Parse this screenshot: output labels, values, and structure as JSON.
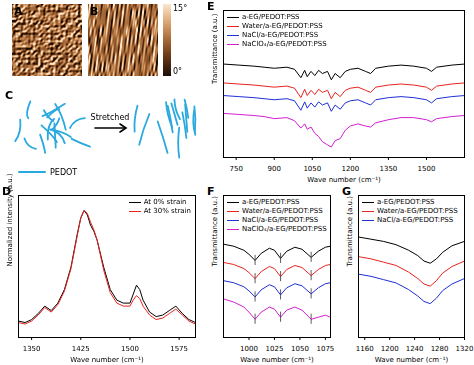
{
  "chart_data": [
    {
      "type": "line",
      "title": "D",
      "x_label": "Wave number (cm⁻¹)",
      "y_label": "Normalized intensity (a.u.)",
      "x": [
        1330,
        1340,
        1350,
        1360,
        1370,
        1380,
        1390,
        1400,
        1410,
        1420,
        1425,
        1430,
        1435,
        1440,
        1445,
        1450,
        1460,
        1470,
        1480,
        1490,
        1500,
        1505,
        1510,
        1515,
        1520,
        1530,
        1540,
        1550,
        1560,
        1570,
        1580,
        1590,
        1600
      ],
      "series": [
        {
          "name": "At 0% strain",
          "color": "#000000",
          "values": [
            0.26,
            0.25,
            0.27,
            0.31,
            0.36,
            0.33,
            0.38,
            0.47,
            0.62,
            0.85,
            0.95,
            1.0,
            0.97,
            0.9,
            0.86,
            0.8,
            0.62,
            0.47,
            0.4,
            0.38,
            0.38,
            0.44,
            0.5,
            0.47,
            0.4,
            0.32,
            0.29,
            0.3,
            0.33,
            0.36,
            0.31,
            0.27,
            0.25
          ]
        },
        {
          "name": "At 30% strain",
          "color": "#e8231f",
          "values": [
            0.25,
            0.24,
            0.26,
            0.3,
            0.35,
            0.32,
            0.37,
            0.46,
            0.61,
            0.84,
            0.95,
            1.0,
            0.98,
            0.92,
            0.87,
            0.8,
            0.6,
            0.45,
            0.38,
            0.36,
            0.36,
            0.4,
            0.43,
            0.41,
            0.36,
            0.3,
            0.27,
            0.28,
            0.31,
            0.34,
            0.3,
            0.26,
            0.24
          ]
        }
      ],
      "xlim": [
        1330,
        1600
      ],
      "xticks": [
        1350,
        1425,
        1500,
        1575
      ],
      "ylim": [
        0.15,
        1.1
      ],
      "tick_labels": "x",
      "legend": "top right"
    },
    {
      "type": "line",
      "title": "E",
      "x_label": "Wave number (cm⁻¹)",
      "y_label": "Transmittance (a.u.)",
      "x": [
        700,
        760,
        820,
        860,
        900,
        950,
        980,
        1005,
        1020,
        1030,
        1045,
        1060,
        1075,
        1090,
        1110,
        1125,
        1140,
        1160,
        1180,
        1200,
        1230,
        1260,
        1280,
        1300,
        1350,
        1400,
        1450,
        1500,
        1520,
        1540,
        1600,
        1650
      ],
      "series": [
        {
          "name": "a-EG/PEDOT:PSS",
          "color": "#000000",
          "values": [
            8.9,
            8.8,
            8.7,
            8.6,
            8.5,
            8.6,
            8.4,
            7.6,
            8.3,
            7.7,
            8.2,
            7.8,
            8.3,
            8.0,
            8.2,
            7.4,
            8.0,
            7.6,
            8.2,
            8.4,
            8.5,
            8.2,
            8.0,
            8.5,
            8.7,
            8.8,
            8.7,
            8.5,
            8.2,
            8.6,
            8.8,
            8.9
          ]
        },
        {
          "name": "Water/a-EG/PEDOT:PSS",
          "color": "#e8231f",
          "values": [
            7.1,
            7.0,
            6.9,
            6.8,
            6.7,
            6.8,
            6.6,
            5.7,
            6.5,
            5.9,
            6.4,
            6.0,
            6.5,
            6.2,
            6.4,
            5.6,
            6.2,
            5.8,
            6.4,
            6.6,
            6.7,
            6.4,
            6.2,
            6.7,
            6.9,
            7.0,
            6.9,
            6.7,
            6.4,
            6.8,
            7.0,
            7.1
          ]
        },
        {
          "name": "NaCl/a-EG/PEDOT:PSS",
          "color": "#1f2fd6",
          "values": [
            5.9,
            5.8,
            5.7,
            5.6,
            5.5,
            5.6,
            5.4,
            4.5,
            5.3,
            4.7,
            5.2,
            4.8,
            5.3,
            5.0,
            5.2,
            4.4,
            5.0,
            4.6,
            5.2,
            5.4,
            5.5,
            5.2,
            5.0,
            5.5,
            5.7,
            5.8,
            5.7,
            5.5,
            5.2,
            5.6,
            5.8,
            5.9
          ]
        },
        {
          "name": "NaClO₄/a-EG/PEDOT:PSS",
          "color": "#d21fd2",
          "values": [
            4.2,
            4.1,
            4.0,
            3.9,
            3.7,
            3.8,
            3.5,
            2.8,
            3.2,
            2.7,
            2.9,
            2.3,
            2.0,
            1.5,
            1.2,
            1.0,
            1.6,
            1.8,
            2.6,
            3.0,
            3.2,
            3.0,
            2.9,
            3.3,
            3.6,
            3.8,
            3.8,
            3.6,
            3.4,
            3.7,
            3.9,
            4.0
          ]
        }
      ],
      "xlim": [
        700,
        1650
      ],
      "xticks": [
        750,
        900,
        1050,
        1200,
        1350,
        1500
      ],
      "ylim": [
        0,
        14
      ],
      "tick_labels": "x",
      "legend": "top left"
    },
    {
      "type": "line",
      "title": "F",
      "x_label": "Wave number (cm⁻¹)",
      "y_label": "Transmittance (a.u.)",
      "x": [
        975,
        985,
        995,
        1000,
        1006,
        1012,
        1020,
        1025,
        1031,
        1037,
        1045,
        1052,
        1061,
        1068,
        1075,
        1080
      ],
      "series": [
        {
          "name": "a-EG/PEDOT:PSS",
          "color": "#000000",
          "values": [
            9.2,
            9.0,
            8.6,
            8.2,
            7.6,
            8.3,
            8.8,
            8.6,
            7.8,
            8.5,
            8.9,
            8.7,
            7.9,
            8.5,
            8.9,
            9.0
          ]
        },
        {
          "name": "Water/a-EG/PEDOT:PSS",
          "color": "#e8231f",
          "values": [
            7.4,
            7.2,
            6.8,
            6.4,
            5.8,
            6.5,
            7.0,
            6.8,
            6.0,
            6.7,
            7.1,
            6.9,
            6.1,
            6.7,
            7.1,
            7.2
          ]
        },
        {
          "name": "NaCl/a-EG/PEDOT:PSS",
          "color": "#1f2fd6",
          "values": [
            5.6,
            5.4,
            5.0,
            4.6,
            4.0,
            4.7,
            5.2,
            5.0,
            4.2,
            4.9,
            5.3,
            5.1,
            4.3,
            4.9,
            5.3,
            5.4
          ]
        },
        {
          "name": "NaClO₄/a-EG/PEDOT:PSS",
          "color": "#d21fd2",
          "values": [
            3.8,
            3.5,
            3.0,
            2.5,
            1.8,
            2.5,
            3.0,
            2.8,
            2.0,
            2.7,
            3.0,
            2.7,
            1.8,
            2.0,
            2.2,
            2.0
          ]
        }
      ],
      "reference_x": [
        1006,
        1031,
        1061
      ],
      "xlim": [
        975,
        1080
      ],
      "xticks": [
        1000,
        1025,
        1050,
        1075
      ],
      "ylim": [
        0,
        14
      ],
      "tick_labels": "x",
      "legend": "top left"
    },
    {
      "type": "line",
      "title": "G",
      "x_label": "Wave number (cm⁻¹)",
      "y_label": "Transmittance (a.u.)",
      "x": [
        1150,
        1170,
        1190,
        1210,
        1230,
        1245,
        1255,
        1265,
        1275,
        1285,
        1300,
        1320
      ],
      "series": [
        {
          "name": "a-EG/PEDOT:PSS",
          "color": "#000000",
          "values": [
            9.2,
            9.0,
            8.8,
            8.5,
            8.0,
            7.5,
            7.0,
            6.8,
            7.2,
            7.8,
            8.4,
            8.8
          ]
        },
        {
          "name": "Water/a-EG/PEDOT:PSS",
          "color": "#e8231f",
          "values": [
            7.4,
            7.2,
            6.9,
            6.6,
            6.0,
            5.4,
            4.9,
            4.7,
            5.2,
            5.9,
            6.5,
            7.0
          ]
        },
        {
          "name": "NaCl/a-EG/PEDOT:PSS",
          "color": "#1f2fd6",
          "values": [
            5.8,
            5.6,
            5.3,
            5.0,
            4.4,
            3.8,
            3.3,
            3.1,
            3.6,
            4.3,
            4.9,
            5.4
          ]
        }
      ],
      "xlim": [
        1150,
        1320
      ],
      "xticks": [
        1160,
        1200,
        1240,
        1280,
        1320
      ],
      "ylim": [
        0,
        13
      ],
      "tick_labels": "x",
      "legend": "top left"
    }
  ],
  "afm_images": {
    "labels": [
      "A",
      "B"
    ]
  },
  "colorbar": {
    "range": [
      0,
      15
    ],
    "ticks": [
      {
        "value": 15,
        "label": "15°"
      },
      {
        "value": 0,
        "label": "0°"
      }
    ]
  },
  "schematic": {
    "label": "C",
    "arrow_text": "Stretched",
    "legend_text": "PEDOT"
  }
}
